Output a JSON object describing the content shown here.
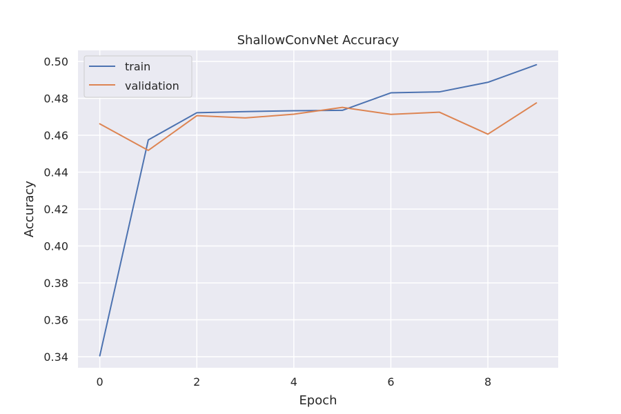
{
  "chart_data": {
    "type": "line",
    "title": "ShallowConvNet Accuracy",
    "xlabel": "Epoch",
    "ylabel": "Accuracy",
    "x": [
      0,
      1,
      2,
      3,
      4,
      5,
      6,
      7,
      8,
      9
    ],
    "xlim": [
      -0.45,
      9.45
    ],
    "ylim": [
      0.334,
      0.506
    ],
    "xticks": [
      0,
      2,
      4,
      6,
      8
    ],
    "yticks": [
      0.34,
      0.36,
      0.38,
      0.4,
      0.42,
      0.44,
      0.46,
      0.48,
      0.5
    ],
    "ytick_labels": [
      "0.34",
      "0.36",
      "0.38",
      "0.40",
      "0.42",
      "0.44",
      "0.46",
      "0.48",
      "0.50"
    ],
    "grid": true,
    "legend_position": "top-left",
    "background_color": "#eaeaf2",
    "grid_color": "#ffffff",
    "series": [
      {
        "name": "train",
        "color": "#4c72b0",
        "values": [
          0.3405,
          0.4575,
          0.4722,
          0.4728,
          0.4733,
          0.4735,
          0.483,
          0.4835,
          0.4887,
          0.4982
        ]
      },
      {
        "name": "validation",
        "color": "#dd8452",
        "values": [
          0.4662,
          0.4518,
          0.4706,
          0.4694,
          0.4714,
          0.4751,
          0.4713,
          0.4725,
          0.4606,
          0.4775
        ]
      }
    ]
  }
}
